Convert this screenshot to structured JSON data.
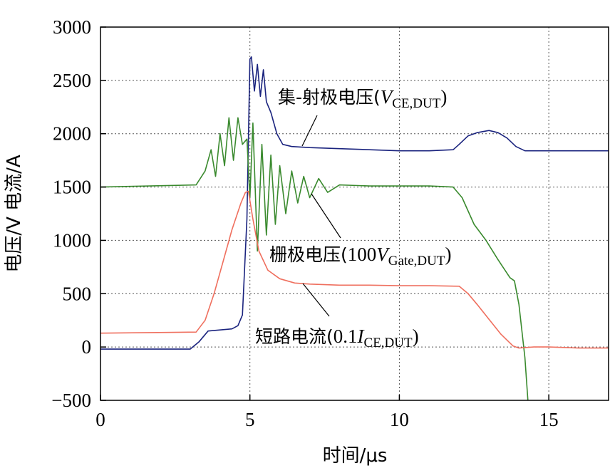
{
  "chart_data": {
    "type": "line",
    "xlabel": "时间/μs",
    "ylabel": "电压/V  电流/A",
    "xlim": [
      0,
      17
    ],
    "ylim": [
      -500,
      3000
    ],
    "xticks": [
      "0",
      "5",
      "10",
      "15"
    ],
    "yticks": [
      "−500",
      "0",
      "500",
      "1000",
      "1500",
      "2000",
      "2500",
      "3000"
    ],
    "grid": true,
    "series": [
      {
        "name": "集-射极电压(V_CE,DUT)",
        "color": "#1a237e",
        "x": [
          0,
          3.0,
          3.3,
          3.6,
          4.0,
          4.4,
          4.6,
          4.75,
          4.9,
          5.0,
          5.05,
          5.15,
          5.25,
          5.35,
          5.45,
          5.55,
          5.7,
          5.9,
          6.1,
          6.4,
          7.0,
          8.0,
          9.0,
          10.0,
          11.0,
          11.8,
          12.0,
          12.3,
          12.6,
          13.0,
          13.3,
          13.6,
          13.9,
          14.2,
          15.0,
          16.0,
          17.0
        ],
        "y": [
          -20,
          -20,
          50,
          150,
          160,
          170,
          200,
          300,
          1200,
          2700,
          2720,
          2400,
          2650,
          2350,
          2600,
          2300,
          2200,
          2000,
          1900,
          1880,
          1870,
          1860,
          1850,
          1840,
          1840,
          1850,
          1900,
          1980,
          2010,
          2030,
          2010,
          1960,
          1880,
          1840,
          1840,
          1840,
          1840
        ]
      },
      {
        "name": "栅极电压(100V_Gate,DUT)",
        "color": "#3a8a2e",
        "x": [
          0,
          3.2,
          3.5,
          3.7,
          3.85,
          4.0,
          4.15,
          4.3,
          4.45,
          4.6,
          4.75,
          4.9,
          5.0,
          5.1,
          5.25,
          5.4,
          5.55,
          5.7,
          5.85,
          6.0,
          6.2,
          6.4,
          6.6,
          6.8,
          7.0,
          7.3,
          7.6,
          8.0,
          9.0,
          10.0,
          11.0,
          11.8,
          12.1,
          12.5,
          12.9,
          13.3,
          13.7,
          13.85,
          14.0,
          14.2,
          14.3
        ],
        "y": [
          1500,
          1520,
          1650,
          1850,
          1600,
          2000,
          1700,
          2150,
          1750,
          2150,
          1900,
          1950,
          1400,
          2100,
          900,
          1900,
          1050,
          1800,
          1150,
          1700,
          1250,
          1650,
          1350,
          1600,
          1400,
          1580,
          1450,
          1520,
          1510,
          1510,
          1510,
          1500,
          1400,
          1150,
          1000,
          820,
          650,
          620,
          400,
          -100,
          -500
        ]
      },
      {
        "name": "短路电流(0.1I_CE,DUT)",
        "color": "#ef6f5e",
        "x": [
          0,
          3.2,
          3.5,
          3.8,
          4.1,
          4.4,
          4.7,
          4.85,
          4.95,
          5.1,
          5.3,
          5.6,
          6.0,
          6.5,
          7.0,
          8.0,
          9.0,
          10.0,
          11.0,
          12.0,
          12.3,
          12.6,
          13.0,
          13.4,
          13.8,
          14.0,
          14.5,
          15.0,
          16.0,
          17.0
        ],
        "y": [
          130,
          140,
          250,
          500,
          800,
          1100,
          1350,
          1450,
          1460,
          1200,
          900,
          720,
          640,
          600,
          590,
          580,
          580,
          575,
          575,
          570,
          500,
          400,
          260,
          120,
          10,
          -10,
          0,
          0,
          -10,
          -10
        ]
      }
    ]
  },
  "annotations": {
    "vce": {
      "text": "集-射极电压(",
      "italic": "V",
      "sub": "CE,DUT",
      "close": ")"
    },
    "gate": {
      "text": "栅极电压(",
      "num": "100",
      "italic": "V",
      "sub": "Gate,DUT",
      "close": ")"
    },
    "ice": {
      "text": "短路电流(",
      "num": "0.1",
      "italic": "I",
      "sub": "CE,DUT",
      "close": ")"
    }
  },
  "colors": {
    "vce": "#1a237e",
    "gate": "#3a8a2e",
    "ice": "#ef6f5e",
    "grid": "#555555"
  }
}
